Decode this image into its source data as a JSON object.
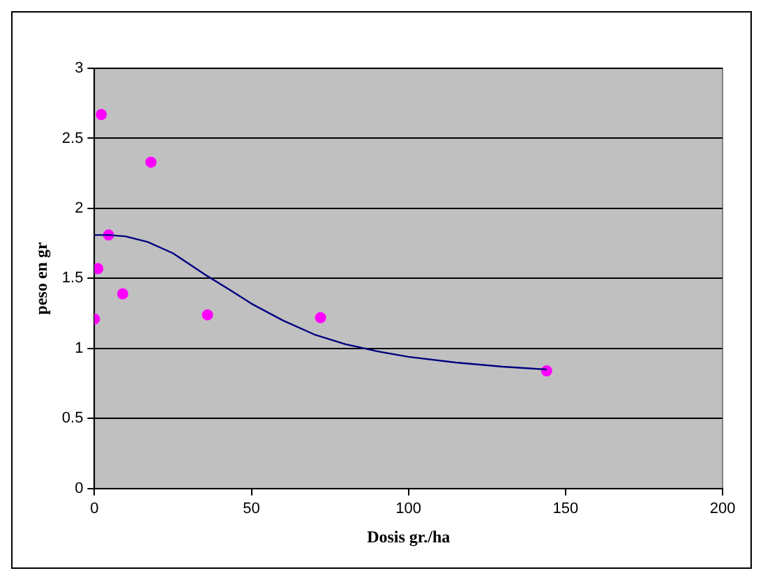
{
  "chart_data": {
    "type": "scatter",
    "xlabel": "Dosis gr./ha",
    "ylabel": "peso en gr",
    "series": [
      {
        "type": "scatter",
        "marker": "circle",
        "color": "#ff00ff",
        "x": [
          0,
          1.1,
          2.2,
          4.5,
          9,
          18,
          36,
          72,
          144
        ],
        "values": [
          1.21,
          1.57,
          2.67,
          1.81,
          1.39,
          2.33,
          1.24,
          1.22,
          0.84
        ]
      },
      {
        "type": "line",
        "marker": "none",
        "color": "#000080",
        "x": [
          0,
          4.5,
          10,
          17,
          25,
          35,
          43,
          50,
          60,
          70,
          80,
          90,
          100,
          115,
          130,
          144
        ],
        "values": [
          1.81,
          1.81,
          1.8,
          1.76,
          1.68,
          1.53,
          1.42,
          1.32,
          1.2,
          1.1,
          1.03,
          0.98,
          0.94,
          0.9,
          0.87,
          0.85
        ]
      }
    ],
    "xlim": [
      0,
      200
    ],
    "xticks": [
      0,
      50,
      100,
      150,
      200
    ],
    "ylim": [
      0,
      3
    ],
    "yticks": [
      0,
      0.5,
      1,
      1.5,
      2,
      2.5,
      3
    ],
    "grid": "y",
    "legend": false
  }
}
